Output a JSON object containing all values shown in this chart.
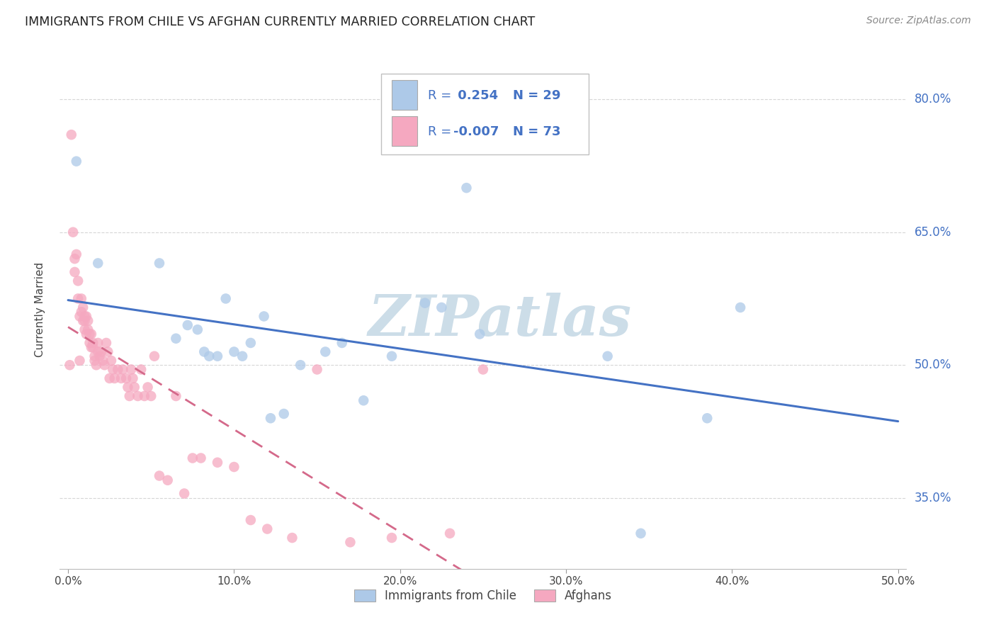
{
  "title": "IMMIGRANTS FROM CHILE VS AFGHAN CURRENTLY MARRIED CORRELATION CHART",
  "source": "Source: ZipAtlas.com",
  "ylabel": "Currently Married",
  "ytick_labels": [
    "35.0%",
    "50.0%",
    "65.0%",
    "80.0%"
  ],
  "ytick_values": [
    0.35,
    0.5,
    0.65,
    0.8
  ],
  "xtick_labels": [
    "0.0%",
    "10.0%",
    "20.0%",
    "30.0%",
    "40.0%",
    "50.0%"
  ],
  "xtick_values": [
    0.0,
    0.1,
    0.2,
    0.3,
    0.4,
    0.5
  ],
  "xlim": [
    -0.005,
    0.505
  ],
  "ylim": [
    0.27,
    0.855
  ],
  "chile_color": "#adc9e8",
  "afghan_color": "#f5a8c0",
  "chile_line_color": "#4472c4",
  "afghan_line_color": "#d4698a",
  "label_color": "#4472c4",
  "chile_R": 0.254,
  "chile_N": 29,
  "afghan_R": -0.007,
  "afghan_N": 73,
  "chile_points_x": [
    0.005,
    0.018,
    0.055,
    0.065,
    0.072,
    0.078,
    0.082,
    0.085,
    0.09,
    0.095,
    0.1,
    0.105,
    0.11,
    0.118,
    0.122,
    0.13,
    0.14,
    0.155,
    0.165,
    0.178,
    0.195,
    0.215,
    0.225,
    0.24,
    0.248,
    0.325,
    0.345,
    0.385,
    0.405
  ],
  "chile_points_y": [
    0.73,
    0.615,
    0.615,
    0.53,
    0.545,
    0.54,
    0.515,
    0.51,
    0.51,
    0.575,
    0.515,
    0.51,
    0.525,
    0.555,
    0.44,
    0.445,
    0.5,
    0.515,
    0.525,
    0.46,
    0.51,
    0.57,
    0.565,
    0.7,
    0.535,
    0.51,
    0.31,
    0.44,
    0.565
  ],
  "afghan_points_x": [
    0.001,
    0.002,
    0.003,
    0.004,
    0.004,
    0.005,
    0.006,
    0.006,
    0.007,
    0.007,
    0.008,
    0.008,
    0.009,
    0.009,
    0.01,
    0.01,
    0.01,
    0.011,
    0.011,
    0.012,
    0.012,
    0.013,
    0.013,
    0.014,
    0.014,
    0.015,
    0.015,
    0.016,
    0.016,
    0.017,
    0.018,
    0.018,
    0.019,
    0.02,
    0.021,
    0.022,
    0.023,
    0.024,
    0.025,
    0.026,
    0.027,
    0.028,
    0.03,
    0.032,
    0.033,
    0.035,
    0.036,
    0.037,
    0.038,
    0.039,
    0.04,
    0.042,
    0.044,
    0.046,
    0.048,
    0.05,
    0.052,
    0.055,
    0.06,
    0.065,
    0.07,
    0.075,
    0.08,
    0.09,
    0.1,
    0.11,
    0.12,
    0.135,
    0.15,
    0.17,
    0.195,
    0.23,
    0.25
  ],
  "afghan_points_y": [
    0.5,
    0.76,
    0.65,
    0.62,
    0.605,
    0.625,
    0.595,
    0.575,
    0.555,
    0.505,
    0.575,
    0.56,
    0.55,
    0.565,
    0.555,
    0.55,
    0.54,
    0.535,
    0.555,
    0.55,
    0.54,
    0.535,
    0.525,
    0.52,
    0.535,
    0.525,
    0.52,
    0.51,
    0.505,
    0.5,
    0.525,
    0.515,
    0.51,
    0.515,
    0.505,
    0.5,
    0.525,
    0.515,
    0.485,
    0.505,
    0.495,
    0.485,
    0.495,
    0.485,
    0.495,
    0.485,
    0.475,
    0.465,
    0.495,
    0.485,
    0.475,
    0.465,
    0.495,
    0.465,
    0.475,
    0.465,
    0.51,
    0.375,
    0.37,
    0.465,
    0.355,
    0.395,
    0.395,
    0.39,
    0.385,
    0.325,
    0.315,
    0.305,
    0.495,
    0.3,
    0.305,
    0.31,
    0.495
  ],
  "grid_color": "#cccccc",
  "watermark_text": "ZIPatlas",
  "watermark_color": "#ccdde8",
  "background_color": "#ffffff",
  "stats_box_border": "#c0c0c0"
}
